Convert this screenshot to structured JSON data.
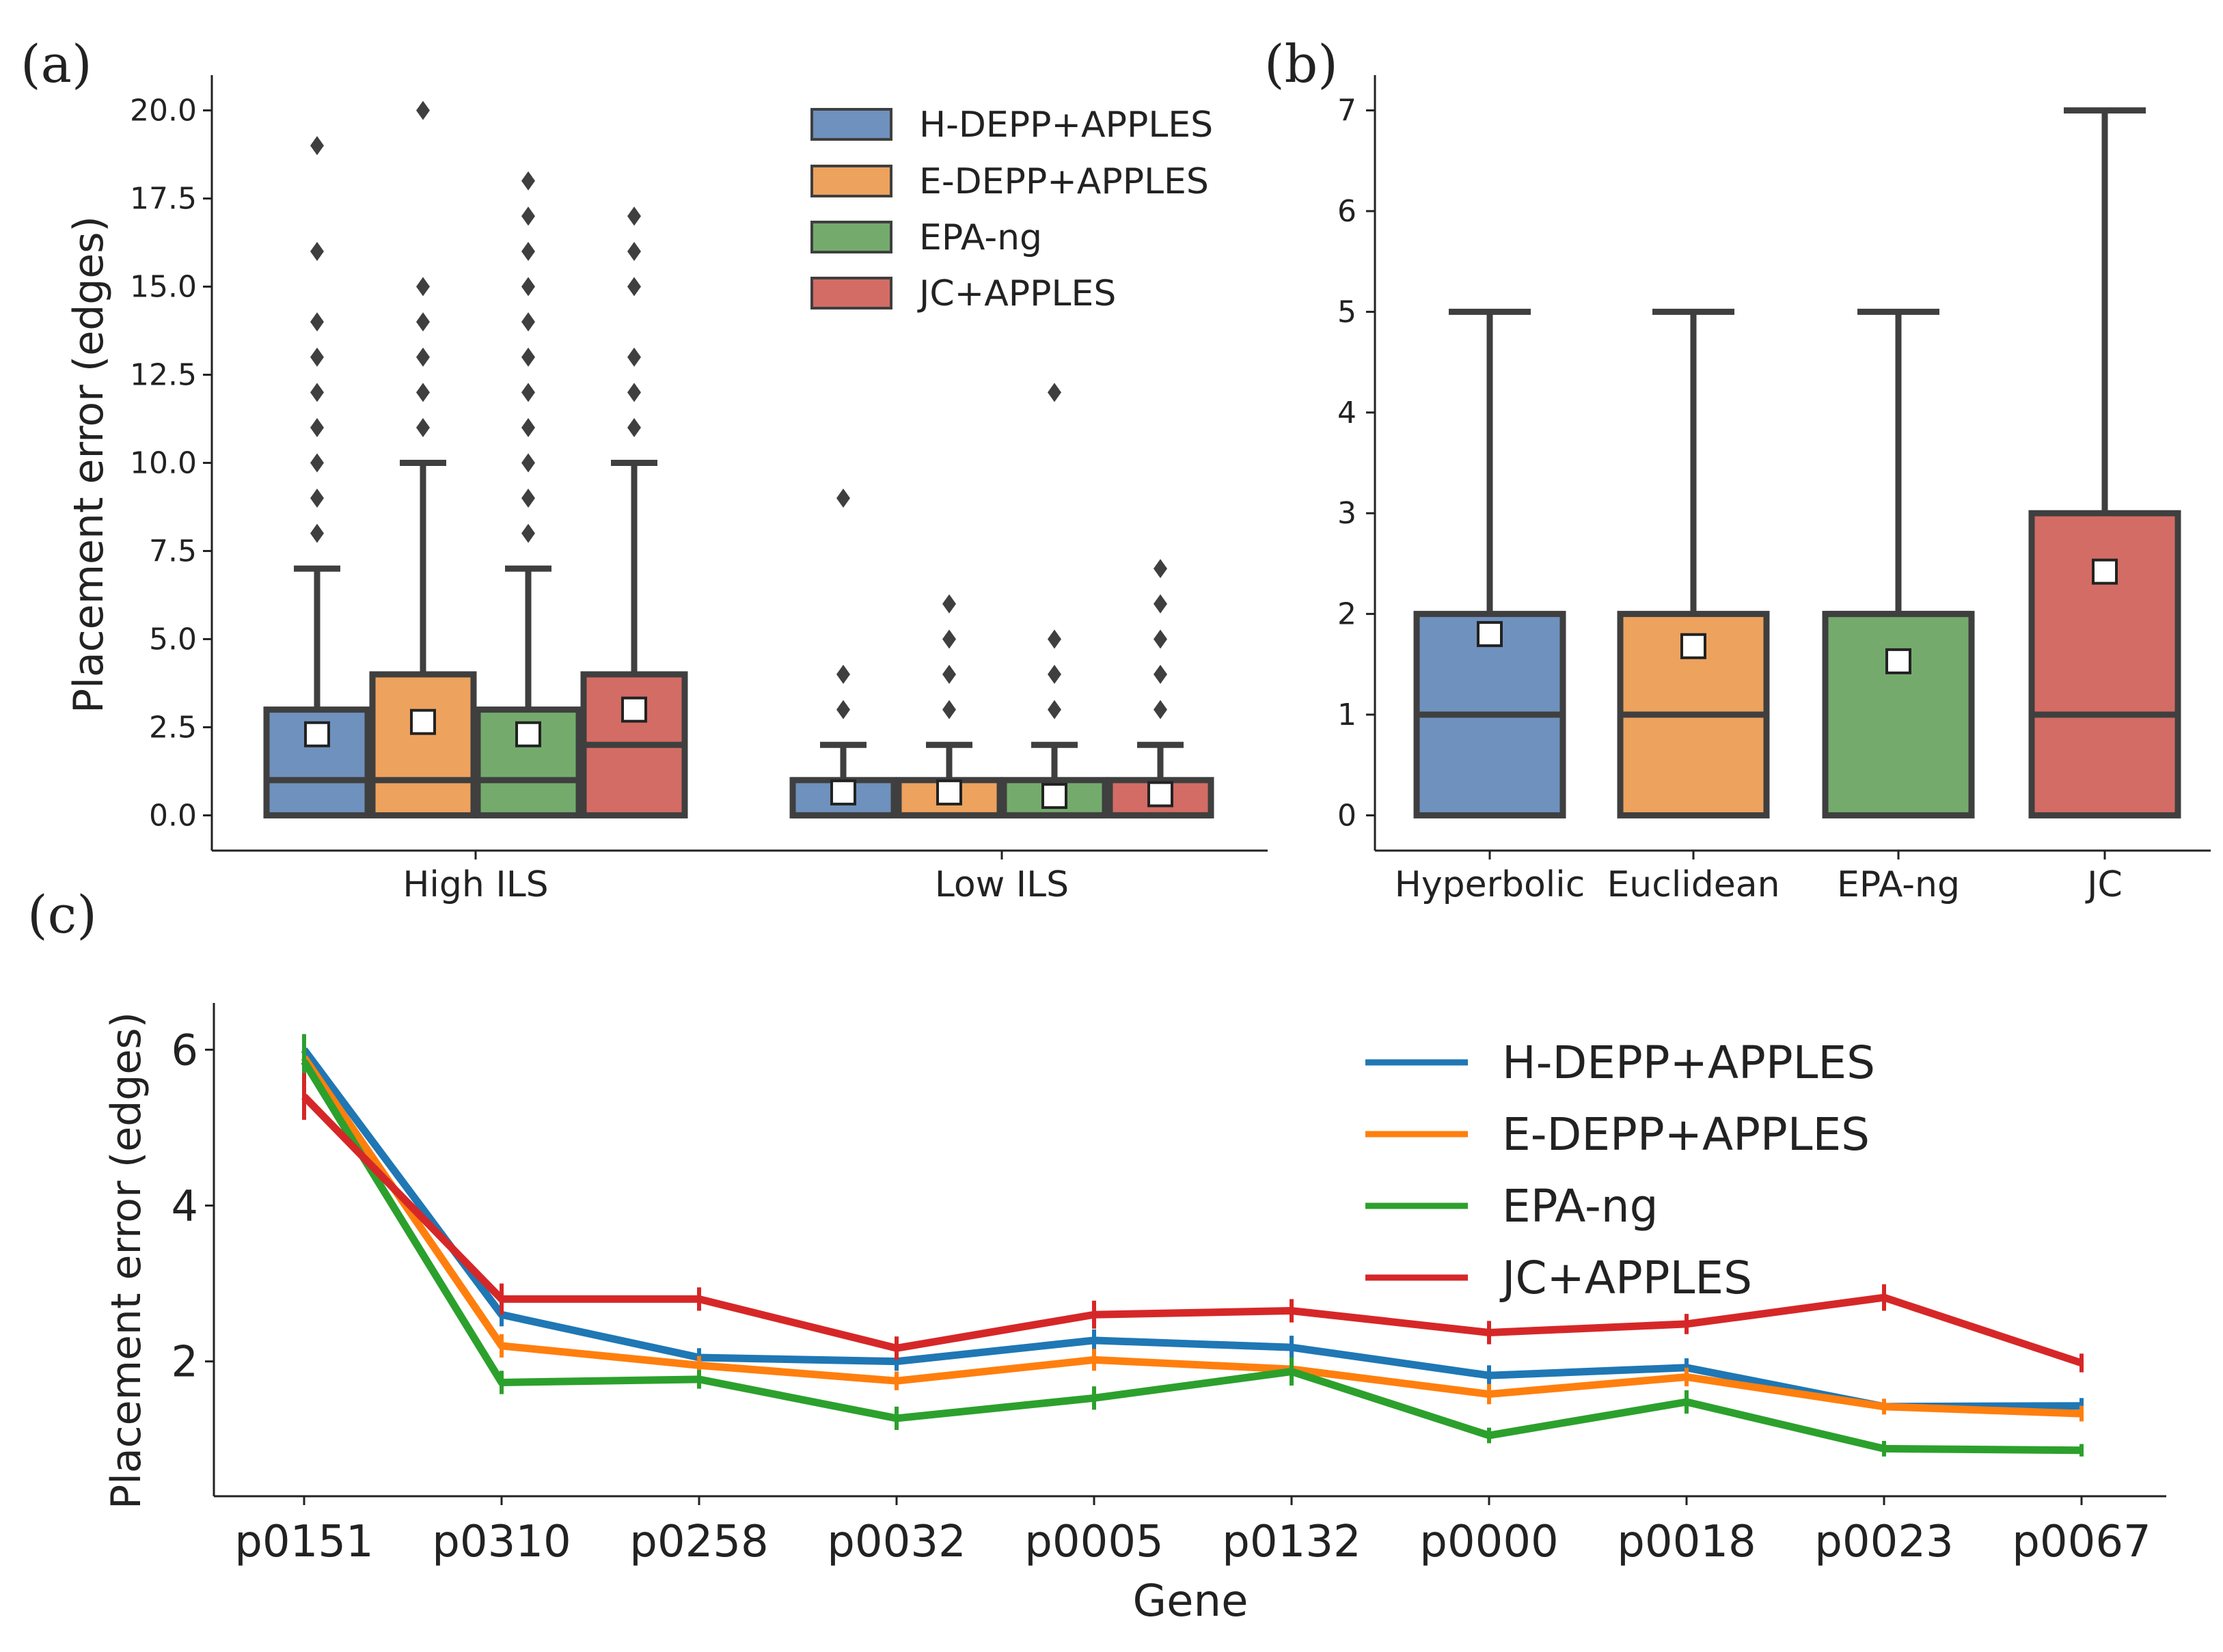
{
  "colors": {
    "axis": "#222222",
    "box_edge": "#3f3f3f",
    "mean_fill": "#ffffff",
    "box_series": [
      "#6f91bd",
      "#eda25e",
      "#74ab6d",
      "#d36c64"
    ],
    "line_series": [
      "#1f77b4",
      "#ff7f0e",
      "#2ca02c",
      "#d62728"
    ]
  },
  "chart_data": [
    {
      "panel": "(a)",
      "type": "box",
      "ylabel": "Placement error (edges)",
      "ylim": [
        -1,
        21
      ],
      "yticks": [
        0.0,
        2.5,
        5.0,
        7.5,
        10.0,
        12.5,
        15.0,
        17.5,
        20.0
      ],
      "ytick_labels": [
        "0.0",
        "2.5",
        "5.0",
        "7.5",
        "10.0",
        "12.5",
        "15.0",
        "17.5",
        "20.0"
      ],
      "categories": [
        "High ILS",
        "Low ILS"
      ],
      "legend": [
        "H-DEPP+APPLES",
        "E-DEPP+APPLES",
        "EPA-ng",
        "JC+APPLES"
      ],
      "legend_position": "top-right",
      "series": [
        {
          "name": "H-DEPP+APPLES",
          "groups": [
            {
              "q1": 0,
              "median": 1,
              "q3": 3,
              "whisker_low": 0,
              "whisker_high": 7,
              "mean": 2.3,
              "outliers": [
                8,
                9,
                10,
                11,
                12,
                13,
                14,
                16,
                19
              ]
            },
            {
              "q1": 0,
              "median": 0,
              "q3": 1,
              "whisker_low": 0,
              "whisker_high": 2,
              "mean": 0.65,
              "outliers": [
                3,
                4,
                9
              ]
            }
          ]
        },
        {
          "name": "E-DEPP+APPLES",
          "groups": [
            {
              "q1": 0,
              "median": 1,
              "q3": 4,
              "whisker_low": 0,
              "whisker_high": 10,
              "mean": 2.65,
              "outliers": [
                11,
                12,
                13,
                14,
                15,
                20
              ]
            },
            {
              "q1": 0,
              "median": 0,
              "q3": 1,
              "whisker_low": 0,
              "whisker_high": 2,
              "mean": 0.65,
              "outliers": [
                3,
                4,
                5,
                6
              ]
            }
          ]
        },
        {
          "name": "EPA-ng",
          "groups": [
            {
              "q1": 0,
              "median": 1,
              "q3": 3,
              "whisker_low": 0,
              "whisker_high": 7,
              "mean": 2.3,
              "outliers": [
                8,
                9,
                10,
                11,
                12,
                13,
                14,
                15,
                16,
                17,
                18
              ]
            },
            {
              "q1": 0,
              "median": 0,
              "q3": 1,
              "whisker_low": 0,
              "whisker_high": 2,
              "mean": 0.55,
              "outliers": [
                3,
                4,
                5,
                12
              ]
            }
          ]
        },
        {
          "name": "JC+APPLES",
          "groups": [
            {
              "q1": 0,
              "median": 2,
              "q3": 4,
              "whisker_low": 0,
              "whisker_high": 10,
              "mean": 3.0,
              "outliers": [
                11,
                12,
                13,
                15,
                16,
                17
              ]
            },
            {
              "q1": 0,
              "median": 0,
              "q3": 1,
              "whisker_low": 0,
              "whisker_high": 2,
              "mean": 0.6,
              "outliers": [
                3,
                4,
                5,
                6,
                7
              ]
            }
          ]
        }
      ]
    },
    {
      "panel": "(b)",
      "type": "box",
      "ylabel": "",
      "ylim": [
        -0.35,
        7.35
      ],
      "yticks": [
        0,
        1,
        2,
        3,
        4,
        5,
        6,
        7
      ],
      "ytick_labels": [
        "0",
        "1",
        "2",
        "3",
        "4",
        "5",
        "6",
        "7"
      ],
      "categories": [
        "Hyperbolic",
        "Euclidean",
        "EPA-ng",
        "JC"
      ],
      "boxes": [
        {
          "q1": 0,
          "median": 1,
          "q3": 2,
          "whisker_low": 0,
          "whisker_high": 5,
          "mean": 1.8
        },
        {
          "q1": 0,
          "median": 1,
          "q3": 2,
          "whisker_low": 0,
          "whisker_high": 5,
          "mean": 1.68
        },
        {
          "q1": 0,
          "median": 2,
          "q3": 2,
          "whisker_low": 0,
          "whisker_high": 5,
          "mean": 1.53
        },
        {
          "q1": 0,
          "median": 1,
          "q3": 3,
          "whisker_low": 0,
          "whisker_high": 7,
          "mean": 2.42
        }
      ]
    },
    {
      "panel": "(c)",
      "type": "line",
      "xlabel": "Gene",
      "ylabel": "Placement error (edges)",
      "ylim": [
        0.27,
        6.6
      ],
      "yticks": [
        2,
        4,
        6
      ],
      "ytick_labels": [
        "2",
        "4",
        "6"
      ],
      "categories": [
        "p0151",
        "p0310",
        "p0258",
        "p0032",
        "p0005",
        "p0132",
        "p0000",
        "p0018",
        "p0023",
        "p0067"
      ],
      "legend_position": "top-right",
      "series": [
        {
          "name": "H-DEPP+APPLES",
          "values": [
            6.0,
            2.6,
            2.05,
            2.0,
            2.27,
            2.18,
            1.82,
            1.92,
            1.42,
            1.43
          ],
          "errors": [
            0.2,
            0.15,
            0.12,
            0.12,
            0.14,
            0.15,
            0.13,
            0.12,
            0.1,
            0.1
          ]
        },
        {
          "name": "E-DEPP+APPLES",
          "values": [
            5.9,
            2.2,
            1.95,
            1.75,
            2.02,
            1.9,
            1.58,
            1.8,
            1.42,
            1.33
          ],
          "errors": [
            0.2,
            0.15,
            0.12,
            0.12,
            0.14,
            0.15,
            0.13,
            0.12,
            0.1,
            0.1
          ]
        },
        {
          "name": "EPA-ng",
          "values": [
            5.85,
            1.73,
            1.77,
            1.27,
            1.53,
            1.87,
            1.05,
            1.48,
            0.88,
            0.86
          ],
          "errors": [
            0.35,
            0.15,
            0.12,
            0.15,
            0.15,
            0.18,
            0.1,
            0.15,
            0.1,
            0.08
          ]
        },
        {
          "name": "JC+APPLES",
          "values": [
            5.4,
            2.8,
            2.8,
            2.17,
            2.6,
            2.65,
            2.37,
            2.48,
            2.82,
            1.98
          ],
          "errors": [
            0.3,
            0.2,
            0.15,
            0.15,
            0.18,
            0.15,
            0.15,
            0.13,
            0.17,
            0.12
          ]
        }
      ]
    }
  ]
}
